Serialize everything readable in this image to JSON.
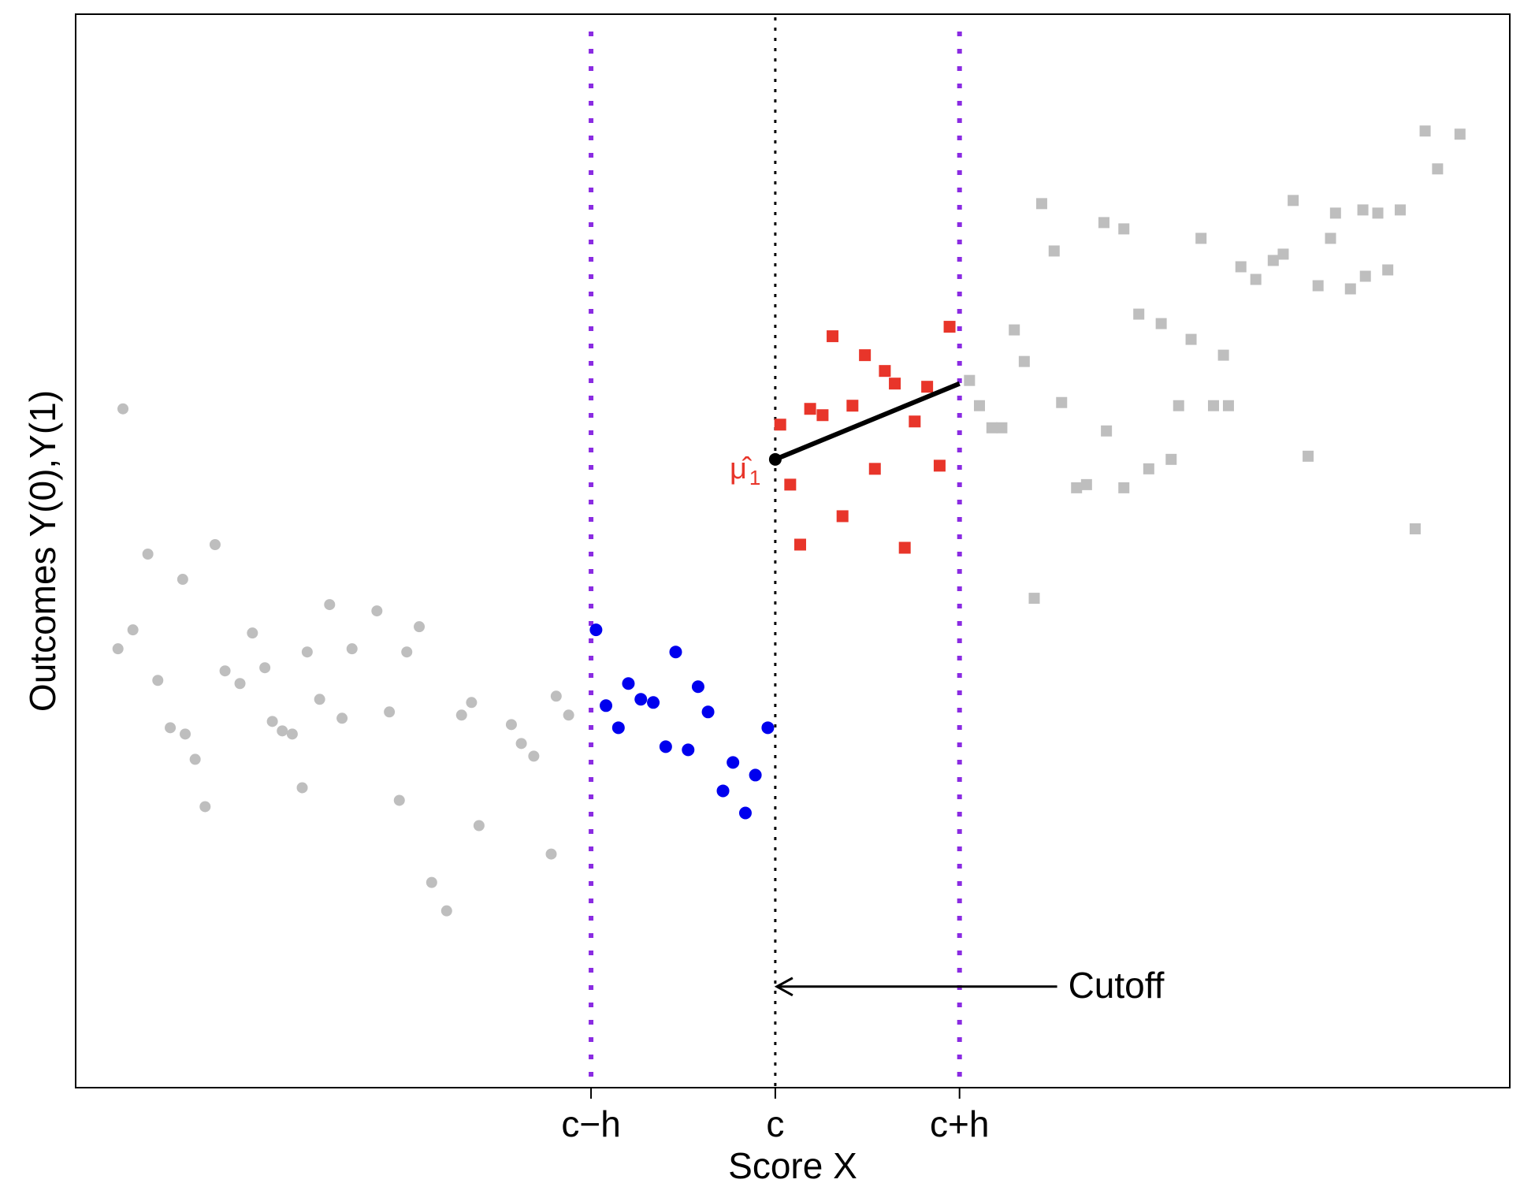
{
  "chart_data": {
    "type": "scatter",
    "title": "",
    "xlabel": "Score X",
    "ylabel": "Outcomes Y(0),Y(1)",
    "xlim": [
      -2.81,
      2.95
    ],
    "ylim": [
      -1.35,
      2.05
    ],
    "x_ticks": [
      {
        "value": -0.74,
        "label": "c−h"
      },
      {
        "value": 0.0,
        "label": "c"
      },
      {
        "value": 0.74,
        "label": "c+h"
      }
    ],
    "cutoff": 0.0,
    "bandwidth_lines": [
      -0.74,
      0.74
    ],
    "annotation": {
      "text": "Cutoff",
      "x": 1.17,
      "y": -1.03,
      "arrow_to_x": 0.0
    },
    "estimate": {
      "label": "μ̂",
      "subscript": "1",
      "x": 0.0,
      "y": 0.64
    },
    "fit_line": {
      "x": [
        0.0,
        0.74
      ],
      "y": [
        0.64,
        0.88
      ]
    },
    "colors": {
      "control_in_band": "#0000ee",
      "treated_in_band": "#e8352a",
      "outside_band": "#bebebe",
      "bandwidth_line": "#8a2be2",
      "cutoff_line": "#000000",
      "fit_line": "#000000",
      "estimate_label": "#e8352a"
    },
    "series": [
      {
        "group": "control-outside",
        "marker": "circle",
        "points": [
          [
            -2.62,
            0.8
          ],
          [
            -2.52,
            0.34
          ],
          [
            -2.58,
            0.1
          ],
          [
            -2.64,
            0.04
          ],
          [
            -2.48,
            -0.06
          ],
          [
            -2.38,
            0.26
          ],
          [
            -2.43,
            -0.21
          ],
          [
            -2.37,
            -0.23
          ],
          [
            -2.33,
            -0.31
          ],
          [
            -2.29,
            -0.46
          ],
          [
            -2.25,
            0.37
          ],
          [
            -2.21,
            -0.03
          ],
          [
            -2.15,
            -0.07
          ],
          [
            -2.1,
            0.09
          ],
          [
            -2.05,
            -0.02
          ],
          [
            -2.02,
            -0.19
          ],
          [
            -1.98,
            -0.22
          ],
          [
            -1.94,
            -0.23
          ],
          [
            -1.9,
            -0.4
          ],
          [
            -1.88,
            0.03
          ],
          [
            -1.83,
            -0.12
          ],
          [
            -1.79,
            0.18
          ],
          [
            -1.74,
            -0.18
          ],
          [
            -1.7,
            0.04
          ],
          [
            -1.6,
            0.16
          ],
          [
            -1.55,
            -0.16
          ],
          [
            -1.51,
            -0.44
          ],
          [
            -1.48,
            0.03
          ],
          [
            -1.43,
            0.11
          ],
          [
            -1.38,
            -0.7
          ],
          [
            -1.32,
            -0.79
          ],
          [
            -1.26,
            -0.17
          ],
          [
            -1.22,
            -0.13
          ],
          [
            -1.06,
            -0.2
          ],
          [
            -1.02,
            -0.26
          ],
          [
            -0.97,
            -0.3
          ],
          [
            -0.9,
            -0.61
          ],
          [
            -0.88,
            -0.11
          ],
          [
            -0.83,
            -0.17
          ],
          [
            -1.19,
            -0.52
          ]
        ]
      },
      {
        "group": "control-in-band",
        "marker": "circle",
        "points": [
          [
            -0.72,
            0.1
          ],
          [
            -0.68,
            -0.14
          ],
          [
            -0.63,
            -0.21
          ],
          [
            -0.59,
            -0.07
          ],
          [
            -0.54,
            -0.12
          ],
          [
            -0.49,
            -0.13
          ],
          [
            -0.44,
            -0.27
          ],
          [
            -0.4,
            0.03
          ],
          [
            -0.35,
            -0.28
          ],
          [
            -0.31,
            -0.08
          ],
          [
            -0.27,
            -0.16
          ],
          [
            -0.21,
            -0.41
          ],
          [
            -0.17,
            -0.32
          ],
          [
            -0.12,
            -0.48
          ],
          [
            -0.08,
            -0.36
          ],
          [
            -0.03,
            -0.21
          ]
        ]
      },
      {
        "group": "treated-in-band",
        "marker": "square",
        "points": [
          [
            0.02,
            0.75
          ],
          [
            0.06,
            0.56
          ],
          [
            0.1,
            0.37
          ],
          [
            0.14,
            0.8
          ],
          [
            0.19,
            0.78
          ],
          [
            0.23,
            1.03
          ],
          [
            0.27,
            0.46
          ],
          [
            0.31,
            0.81
          ],
          [
            0.36,
            0.97
          ],
          [
            0.4,
            0.61
          ],
          [
            0.44,
            0.92
          ],
          [
            0.48,
            0.88
          ],
          [
            0.52,
            0.36
          ],
          [
            0.56,
            0.76
          ],
          [
            0.61,
            0.87
          ],
          [
            0.66,
            0.62
          ],
          [
            0.7,
            1.06
          ]
        ]
      },
      {
        "group": "treated-outside",
        "marker": "square",
        "points": [
          [
            0.78,
            0.89
          ],
          [
            0.82,
            0.81
          ],
          [
            0.87,
            0.74
          ],
          [
            0.91,
            0.74
          ],
          [
            0.96,
            1.05
          ],
          [
            1.0,
            0.95
          ],
          [
            1.04,
            0.2
          ],
          [
            1.07,
            1.45
          ],
          [
            1.12,
            1.3
          ],
          [
            1.15,
            0.82
          ],
          [
            1.21,
            0.55
          ],
          [
            1.25,
            0.56
          ],
          [
            1.32,
            1.39
          ],
          [
            1.33,
            0.73
          ],
          [
            1.4,
            1.37
          ],
          [
            1.4,
            0.55
          ],
          [
            1.46,
            1.1
          ],
          [
            1.5,
            0.61
          ],
          [
            1.55,
            1.07
          ],
          [
            1.59,
            0.64
          ],
          [
            1.62,
            0.81
          ],
          [
            1.67,
            1.02
          ],
          [
            1.71,
            1.34
          ],
          [
            1.76,
            0.81
          ],
          [
            1.8,
            0.97
          ],
          [
            1.82,
            0.81
          ],
          [
            1.87,
            1.25
          ],
          [
            1.93,
            1.21
          ],
          [
            2.0,
            1.27
          ],
          [
            2.04,
            1.29
          ],
          [
            2.08,
            1.46
          ],
          [
            2.14,
            0.65
          ],
          [
            2.18,
            1.19
          ],
          [
            2.23,
            1.34
          ],
          [
            2.25,
            1.42
          ],
          [
            2.31,
            1.18
          ],
          [
            2.36,
            1.43
          ],
          [
            2.37,
            1.22
          ],
          [
            2.42,
            1.42
          ],
          [
            2.46,
            1.24
          ],
          [
            2.51,
            1.43
          ],
          [
            2.57,
            0.42
          ],
          [
            2.61,
            1.68
          ],
          [
            2.66,
            1.56
          ],
          [
            2.75,
            1.67
          ]
        ]
      }
    ]
  }
}
